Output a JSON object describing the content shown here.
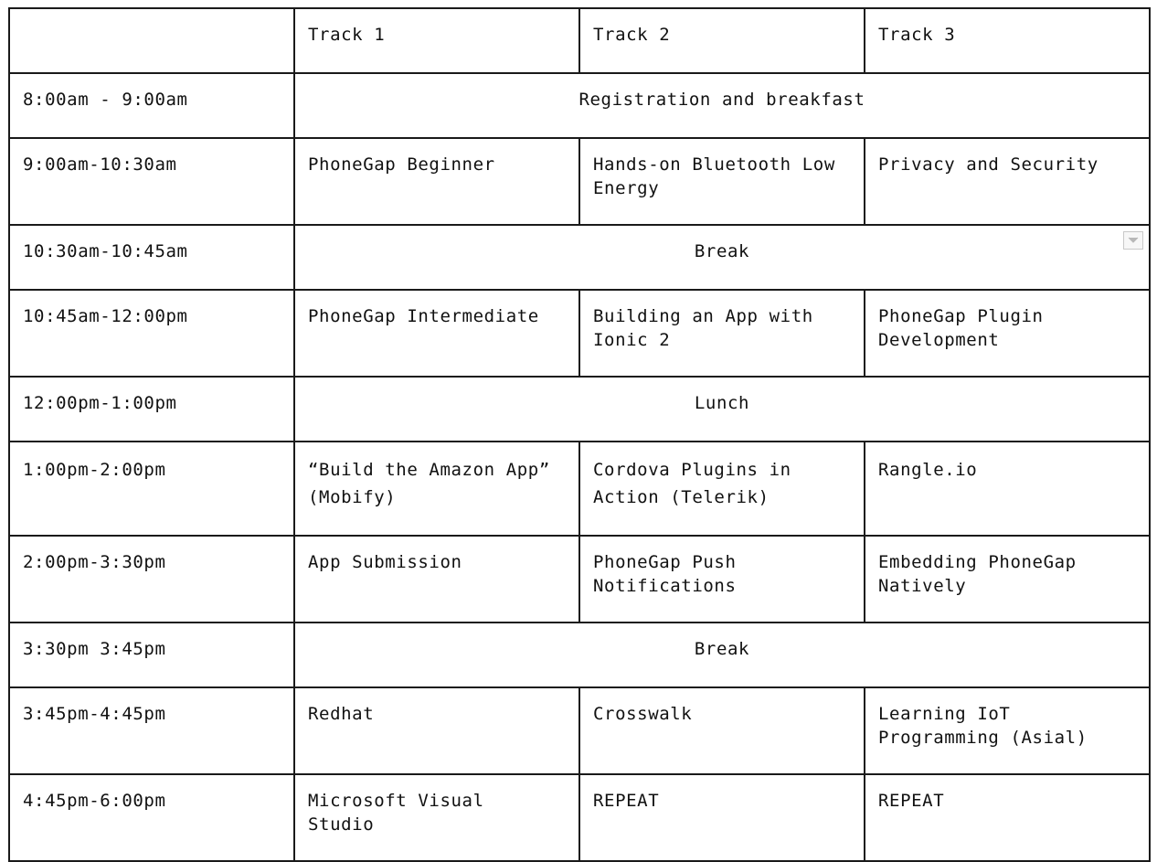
{
  "header": {
    "corner": "",
    "tracks": [
      "Track 1",
      "Track 2",
      "Track 3"
    ]
  },
  "rows": [
    {
      "time": "8:00am - 9:00am",
      "span": "Registration and breakfast"
    },
    {
      "time": "9:00am-10:30am",
      "t1": [
        "PhoneGap Beginner"
      ],
      "t2": [
        "Hands-on Bluetooth Low",
        "Energy"
      ],
      "t3": [
        "Privacy and Security"
      ]
    },
    {
      "time": "10:30am-10:45am",
      "span": "Break"
    },
    {
      "time": "10:45am-12:00pm",
      "t1": [
        "PhoneGap Intermediate"
      ],
      "t2": [
        "Building an App with",
        "Ionic 2"
      ],
      "t3": [
        "PhoneGap Plugin",
        "Development"
      ]
    },
    {
      "time": "12:00pm-1:00pm",
      "span": "Lunch"
    },
    {
      "time": "1:00pm-2:00pm",
      "t1": [
        "“Build the Amazon App”",
        "(Mobify)"
      ],
      "t2": [
        "Cordova Plugins in",
        "Action (Telerik)"
      ],
      "t3": [
        "Rangle.io"
      ]
    },
    {
      "time": "2:00pm-3:30pm",
      "t1": [
        "App Submission"
      ],
      "t2": [
        "PhoneGap Push",
        "Notifications"
      ],
      "t3": [
        "Embedding PhoneGap",
        "Natively"
      ]
    },
    {
      "time": "3:30pm 3:45pm",
      "span": "Break"
    },
    {
      "time": "3:45pm-4:45pm",
      "t1": [
        "Redhat"
      ],
      "t2": [
        "Crosswalk"
      ],
      "t3": [
        "Learning IoT",
        "Programming (Asial)"
      ]
    },
    {
      "time": "4:45pm-6:00pm",
      "t1": [
        "Microsoft Visual",
        "Studio"
      ],
      "t2": [
        "REPEAT"
      ],
      "t3": [
        "REPEAT"
      ]
    }
  ],
  "icons": {
    "dropdown": "chevron-down-icon"
  },
  "colors": {
    "border": "#1a1a1a",
    "text": "#111111",
    "background": "#ffffff"
  }
}
